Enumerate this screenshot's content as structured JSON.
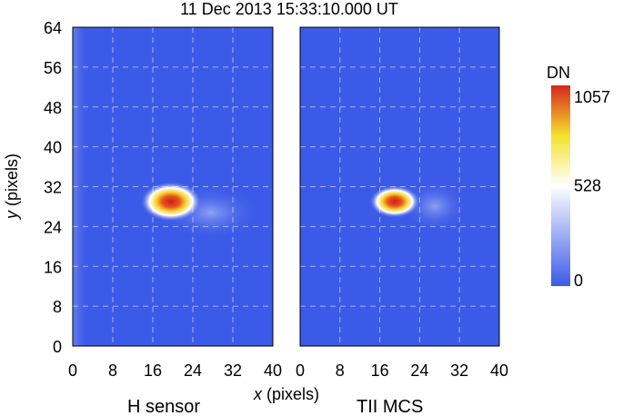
{
  "chart_data": {
    "type": "heatmap",
    "title": "11 Dec 2013 15:33:10.000 UT",
    "xlabel_var": "x",
    "xlabel_unit": " (pixels)",
    "ylabel_var": "y",
    "ylabel_unit": " (pixels)",
    "xlim": [
      0,
      40
    ],
    "ylim": [
      0,
      64
    ],
    "xticks": [
      0,
      8,
      16,
      24,
      32,
      40
    ],
    "yticks": [
      0,
      8,
      16,
      24,
      32,
      40,
      48,
      56,
      64
    ],
    "grid": true,
    "colorbar": {
      "label": "DN",
      "min": 0,
      "max": 1057,
      "ticks": [
        0,
        528,
        1057
      ],
      "colors": [
        "#3b5ae8",
        "#ffffff",
        "#f5e12c",
        "#d7261d"
      ]
    },
    "panels": [
      {
        "label": "H sensor",
        "background": "#3b5ae8",
        "peak_x": 19.5,
        "peak_y": 29,
        "peak_value": 1057,
        "note_extended_glow": true
      },
      {
        "label": "TII MCS",
        "background": "#3b5ae8",
        "peak_x": 19,
        "peak_y": 29,
        "peak_value": 1000,
        "note_extended_glow": true
      }
    ]
  }
}
